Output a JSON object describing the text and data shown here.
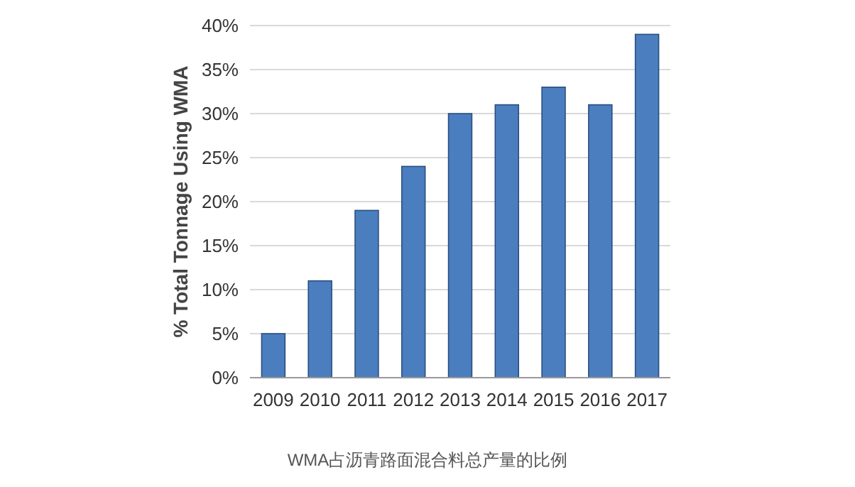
{
  "chart_data": {
    "type": "bar",
    "ylabel": "% Total Tonnage Using WMA",
    "categories": [
      "2009",
      "2010",
      "2011",
      "2012",
      "2013",
      "2014",
      "2015",
      "2016",
      "2017"
    ],
    "values": [
      5,
      11,
      19,
      24,
      30,
      31,
      33,
      31,
      39
    ],
    "color": "#4a7ebf",
    "ylim": [
      0,
      40
    ],
    "yticks": [
      {
        "value": 0,
        "label": "0%"
      },
      {
        "value": 5,
        "label": "5%"
      },
      {
        "value": 10,
        "label": "10%"
      },
      {
        "value": 15,
        "label": "15%"
      },
      {
        "value": 20,
        "label": "20%"
      },
      {
        "value": 25,
        "label": "25%"
      },
      {
        "value": 30,
        "label": "30%"
      },
      {
        "value": 35,
        "label": "35%"
      },
      {
        "value": 40,
        "label": "40%"
      }
    ],
    "grid": "y",
    "annotations": [
      "WMA占沥青路面混合料总产量的比例"
    ]
  }
}
